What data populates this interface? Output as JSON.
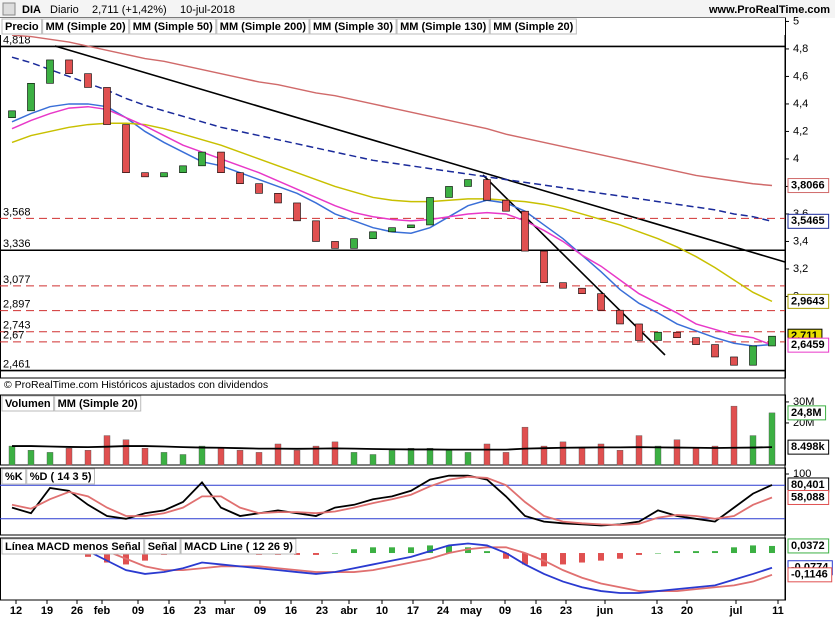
{
  "header": {
    "symbol": "DIA",
    "period": "Diario",
    "last": "2,711 (+1,42%)",
    "date": "10-jul-2018",
    "site": "www.ProRealTime.com"
  },
  "footer_note": "© ProRealTime.com  Históricos ajustados con dividendos",
  "x_axis": {
    "labels": [
      "12",
      "19",
      "26",
      "feb",
      "09",
      "16",
      "23",
      "mar",
      "09",
      "16",
      "23",
      "abr",
      "10",
      "17",
      "24",
      "may",
      "09",
      "16",
      "23",
      "jun",
      "13",
      "20",
      "jul",
      "11"
    ]
  },
  "chart_data": [
    {
      "type": "candlestick",
      "legend_label": "Precio",
      "open": [
        4.3,
        4.35,
        4.55,
        4.72,
        4.62,
        4.52,
        4.25,
        3.9,
        3.87,
        3.9,
        3.95,
        4.05,
        3.9,
        3.82,
        3.75,
        3.68,
        3.55,
        3.4,
        3.35,
        3.42,
        3.47,
        3.5,
        3.52,
        3.72,
        3.8,
        3.85,
        3.7,
        3.62,
        3.33,
        3.1,
        3.06,
        3.02,
        2.9,
        2.8,
        2.68,
        2.74,
        2.7,
        2.65,
        2.56,
        2.5,
        2.64
      ],
      "close": [
        4.35,
        4.55,
        4.72,
        4.62,
        4.52,
        4.25,
        3.9,
        3.87,
        3.9,
        3.95,
        4.05,
        3.9,
        3.82,
        3.75,
        3.68,
        3.55,
        3.4,
        3.35,
        3.42,
        3.47,
        3.5,
        3.52,
        3.72,
        3.8,
        3.85,
        3.7,
        3.62,
        3.33,
        3.1,
        3.06,
        3.02,
        2.9,
        2.8,
        2.68,
        2.74,
        2.7,
        2.65,
        2.56,
        2.5,
        2.64,
        2.711
      ],
      "up_color": "#3cb043",
      "down_color": "#e05050",
      "series": [
        {
          "name": "MM (Simple 20)",
          "color": "#3a6fd8",
          "values": [
            4.27,
            4.33,
            4.38,
            4.4,
            4.4,
            4.38,
            4.3,
            4.2,
            4.12,
            4.05,
            3.98,
            3.95,
            3.9,
            3.85,
            3.8,
            3.75,
            3.68,
            3.6,
            3.55,
            3.5,
            3.47,
            3.46,
            3.5,
            3.58,
            3.66,
            3.7,
            3.68,
            3.62,
            3.52,
            3.42,
            3.3,
            3.18,
            3.05,
            2.95,
            2.88,
            2.8,
            2.75,
            2.7,
            2.66,
            2.64,
            2.65
          ]
        },
        {
          "name": "MM (Simple 50)",
          "color": "#c8c000",
          "values": [
            4.12,
            4.17,
            4.2,
            4.23,
            4.25,
            4.26,
            4.26,
            4.25,
            4.22,
            4.18,
            4.14,
            4.1,
            4.05,
            4.0,
            3.95,
            3.9,
            3.85,
            3.8,
            3.76,
            3.72,
            3.7,
            3.69,
            3.69,
            3.7,
            3.71,
            3.71,
            3.7,
            3.69,
            3.67,
            3.64,
            3.6,
            3.56,
            3.52,
            3.47,
            3.42,
            3.36,
            3.29,
            3.21,
            3.12,
            3.03,
            2.9643
          ]
        },
        {
          "name": "MM (Simple 200)",
          "color": "#d06a6a",
          "values": [
            4.9,
            4.89,
            4.87,
            4.85,
            4.82,
            4.79,
            4.76,
            4.73,
            4.71,
            4.68,
            4.65,
            4.62,
            4.59,
            4.56,
            4.54,
            4.51,
            4.48,
            4.46,
            4.43,
            4.4,
            4.37,
            4.34,
            4.31,
            4.28,
            4.25,
            4.22,
            4.18,
            4.15,
            4.12,
            4.09,
            4.06,
            4.03,
            4.0,
            3.97,
            3.94,
            3.91,
            3.88,
            3.86,
            3.84,
            3.82,
            3.8066
          ]
        },
        {
          "name": "MM (Simple 30)",
          "color": "#e838c8",
          "values": [
            4.22,
            4.28,
            4.33,
            4.37,
            4.38,
            4.36,
            4.3,
            4.24,
            4.17,
            4.1,
            4.05,
            4.0,
            3.95,
            3.9,
            3.84,
            3.78,
            3.72,
            3.66,
            3.61,
            3.58,
            3.56,
            3.55,
            3.56,
            3.58,
            3.6,
            3.61,
            3.6,
            3.55,
            3.48,
            3.4,
            3.3,
            3.22,
            3.12,
            3.02,
            2.95,
            2.88,
            2.8,
            2.76,
            2.72,
            2.7,
            2.6459
          ]
        },
        {
          "name": "MM (Simple 130)",
          "color": "#1a2a9a",
          "style": "dashed",
          "values": [
            4.74,
            4.7,
            4.65,
            4.6,
            4.55,
            4.5,
            4.44,
            4.39,
            4.35,
            4.31,
            4.27,
            4.23,
            4.2,
            4.17,
            4.14,
            4.11,
            4.08,
            4.05,
            4.02,
            3.99,
            3.97,
            3.95,
            3.93,
            3.91,
            3.89,
            3.87,
            3.85,
            3.83,
            3.81,
            3.79,
            3.77,
            3.75,
            3.73,
            3.71,
            3.69,
            3.67,
            3.65,
            3.63,
            3.6,
            3.58,
            3.5465
          ]
        }
      ],
      "legend_extra": {
        "name": "MM (Simple 20)",
        "color": "#e07070"
      },
      "ylim": [
        2.407,
        5.025
      ],
      "yticks": [
        5,
        {
          "value": 4.8,
          "label": "4,8"
        },
        {
          "value": 4.6,
          "label": "4,6"
        },
        {
          "value": 4.4,
          "label": "4,4"
        },
        {
          "value": 4.2,
          "label": "4,2"
        },
        4,
        {
          "value": 3.8,
          "label": "3,8"
        },
        {
          "value": 3.6,
          "label": "3,6"
        },
        {
          "value": 3.4,
          "label": "3,4"
        },
        {
          "value": 3.2,
          "label": "3,2"
        },
        3
      ],
      "levels": [
        {
          "value": 4.818,
          "label": "4,818",
          "style": "solid"
        },
        {
          "value": 3.568,
          "label": "3,568",
          "style": "dashed"
        },
        {
          "value": 3.336,
          "label": "3,336",
          "style": "solid"
        },
        {
          "value": 3.077,
          "label": "3,077",
          "style": "dashed"
        },
        {
          "value": 2.897,
          "label": "2,897",
          "style": "dashed"
        },
        {
          "value": 2.743,
          "label": "2,743",
          "style": "dashed"
        },
        {
          "value": 2.67,
          "label": "2,67",
          "style": "dashed"
        },
        {
          "value": 2.461,
          "label": "2,461",
          "style": "solid"
        }
      ],
      "last_labels": [
        {
          "value": 3.8066,
          "label": "3,8066",
          "color": "#d06a6a"
        },
        {
          "value": 3.5465,
          "label": "3,5465",
          "color": "#1a2a9a"
        },
        {
          "value": 2.9643,
          "label": "2,9643",
          "color": "#a8a000"
        },
        {
          "value": 2.711,
          "label": "2,711",
          "color": "#000000",
          "background": "#e8e000"
        },
        {
          "value": 2.6459,
          "label": "2,6459",
          "color": "#e838c8"
        }
      ]
    },
    {
      "type": "bar",
      "legend_label": "Volumen",
      "values": [
        9,
        7,
        6,
        8,
        7,
        14,
        12,
        8,
        6,
        5,
        9,
        8,
        7,
        6,
        10,
        7,
        9,
        11,
        6,
        5,
        7,
        8,
        8,
        7,
        6,
        10,
        6,
        18,
        9,
        11,
        8,
        10,
        7,
        14,
        9,
        12,
        8,
        9,
        28,
        14,
        24.8
      ],
      "series": [
        {
          "name": "MM (Simple 20)",
          "color": "#000000",
          "values": [
            9,
            9,
            8.8,
            8.6,
            8.5,
            8.7,
            9,
            9,
            8.8,
            8.5,
            8.3,
            8.2,
            8,
            7.8,
            7.8,
            7.7,
            7.8,
            7.9,
            7.8,
            7.6,
            7.5,
            7.4,
            7.4,
            7.3,
            7.3,
            7.3,
            7.3,
            7.8,
            8,
            8.2,
            8.3,
            8.4,
            8.4,
            8.5,
            8.4,
            8.3,
            8.2,
            8.1,
            8.2,
            8.3,
            8.498
          ]
        }
      ],
      "ylim": [
        0,
        33.3
      ],
      "yticks": [
        {
          "value": 30,
          "label": "30M"
        },
        {
          "value": 20,
          "label": "20M"
        }
      ],
      "last_labels": [
        {
          "value": 24.8,
          "label": "24,8M",
          "color": "#3cb043"
        },
        {
          "value": 8.498,
          "label": "8.498k",
          "color": "#000000"
        }
      ]
    },
    {
      "type": "line",
      "series": [
        {
          "name": "%K",
          "color": "#000000",
          "values": [
            40,
            30,
            75,
            70,
            45,
            25,
            20,
            30,
            35,
            50,
            85,
            40,
            25,
            30,
            35,
            30,
            25,
            40,
            45,
            55,
            60,
            70,
            90,
            97,
            97,
            90,
            60,
            25,
            15,
            12,
            10,
            8,
            10,
            15,
            35,
            25,
            20,
            15,
            40,
            65,
            80.401
          ]
        },
        {
          "name": "%D ( 14 3 5)",
          "color": "#e07070",
          "values": [
            45,
            38,
            55,
            68,
            60,
            40,
            25,
            25,
            30,
            40,
            60,
            60,
            40,
            30,
            32,
            32,
            30,
            33,
            40,
            48,
            55,
            63,
            78,
            90,
            95,
            93,
            80,
            50,
            25,
            15,
            12,
            10,
            9,
            11,
            22,
            27,
            25,
            20,
            25,
            45,
            58.088
          ]
        }
      ],
      "levels": [
        80,
        20
      ],
      "ylim": [
        -8.9,
        110.7
      ],
      "yticks": [
        100
      ],
      "last_labels": [
        {
          "value": 80.401,
          "label": "80,401",
          "color": "#000000"
        },
        {
          "value": 58.088,
          "label": "58,088",
          "color": "#e05050"
        }
      ]
    },
    {
      "type": "macd",
      "series": [
        {
          "name": "Línea MACD menos Señal",
          "color": "#3cb043",
          "kind": "histogram",
          "values": [
            0,
            0.02,
            0.02,
            0,
            -0.02,
            -0.05,
            -0.06,
            -0.04,
            -0.01,
            0.01,
            0.03,
            0.01,
            0,
            -0.01,
            -0.01,
            -0.01,
            -0.01,
            0,
            0.02,
            0.03,
            0.03,
            0.03,
            0.04,
            0.04,
            0.03,
            0.01,
            -0.03,
            -0.06,
            -0.07,
            -0.06,
            -0.05,
            -0.04,
            -0.03,
            -0.01,
            0,
            0.01,
            0.01,
            0.01,
            0.03,
            0.04,
            0.0372
          ]
        },
        {
          "name": "Señal",
          "color": "#e07070",
          "values": [
            0.0,
            0.01,
            0.03,
            0.04,
            0.03,
            0.01,
            -0.03,
            -0.07,
            -0.09,
            -0.09,
            -0.08,
            -0.07,
            -0.07,
            -0.07,
            -0.08,
            -0.09,
            -0.1,
            -0.1,
            -0.1,
            -0.09,
            -0.07,
            -0.05,
            -0.03,
            0.0,
            0.02,
            0.03,
            0.03,
            0.0,
            -0.04,
            -0.09,
            -0.13,
            -0.16,
            -0.18,
            -0.2,
            -0.2,
            -0.2,
            -0.19,
            -0.18,
            -0.17,
            -0.15,
            -0.1146
          ]
        },
        {
          "name": "MACD Line ( 12 26 9)",
          "color": "#2a3ad0",
          "values": [
            0.0,
            0.03,
            0.05,
            0.04,
            0.01,
            -0.04,
            -0.09,
            -0.11,
            -0.1,
            -0.08,
            -0.05,
            -0.06,
            -0.07,
            -0.08,
            -0.09,
            -0.1,
            -0.11,
            -0.1,
            -0.08,
            -0.06,
            -0.04,
            -0.02,
            0.01,
            0.04,
            0.05,
            0.04,
            0.0,
            -0.06,
            -0.11,
            -0.15,
            -0.18,
            -0.2,
            -0.21,
            -0.21,
            -0.2,
            -0.19,
            -0.18,
            -0.17,
            -0.14,
            -0.11,
            -0.0774
          ]
        }
      ],
      "ylim": [
        -0.247,
        0.079
      ],
      "last_labels": [
        {
          "value": 0.0372,
          "label": "0,0372",
          "color": "#3cb043"
        },
        {
          "value": -0.0774,
          "label": "-0,0774",
          "color": "#2a3ad0"
        },
        {
          "value": -0.1146,
          "label": "-0,1146",
          "color": "#e05050"
        }
      ]
    }
  ]
}
